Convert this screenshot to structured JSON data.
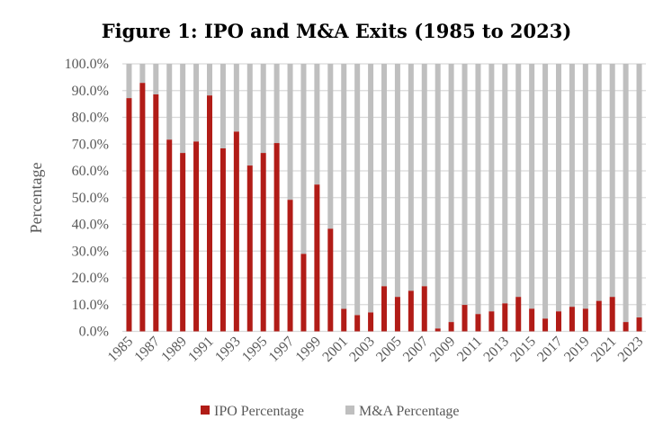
{
  "chart_data": {
    "type": "bar",
    "stacked": true,
    "title": "Figure 1: IPO and M&A Exits (1985 to 2023)",
    "xlabel": "",
    "ylabel": "Percentage",
    "ylim": [
      0,
      100
    ],
    "yticks": [
      "0.0%",
      "10.0%",
      "20.0%",
      "30.0%",
      "40.0%",
      "50.0%",
      "60.0%",
      "70.0%",
      "80.0%",
      "90.0%",
      "100.0%"
    ],
    "grid": true,
    "legend_position": "bottom",
    "categories": [
      "1985",
      "1986",
      "1987",
      "1988",
      "1989",
      "1990",
      "1991",
      "1992",
      "1993",
      "1994",
      "1995",
      "1996",
      "1997",
      "1998",
      "1999",
      "2000",
      "2001",
      "2002",
      "2003",
      "2004",
      "2005",
      "2006",
      "2007",
      "2008",
      "2009",
      "2010",
      "2011",
      "2012",
      "2013",
      "2014",
      "2015",
      "2016",
      "2017",
      "2018",
      "2019",
      "2020",
      "2021",
      "2022",
      "2023"
    ],
    "series": [
      {
        "name": "IPO Percentage",
        "color": "#b11c17",
        "values": [
          87.2,
          92.9,
          88.6,
          71.7,
          66.7,
          71.0,
          88.2,
          68.4,
          74.7,
          62.0,
          66.7,
          70.4,
          49.2,
          29.0,
          54.9,
          38.4,
          8.4,
          6.1,
          7.1,
          16.9,
          12.9,
          15.2,
          16.9,
          1.1,
          3.5,
          9.9,
          6.5,
          7.5,
          10.5,
          12.9,
          8.5,
          4.8,
          7.5,
          9.2,
          8.5,
          11.4,
          12.9,
          3.5,
          5.2
        ]
      },
      {
        "name": "M&A Percentage",
        "color": "#bfbfbf",
        "values": [
          12.8,
          7.1,
          11.4,
          28.3,
          33.3,
          29.0,
          11.8,
          31.6,
          25.3,
          38.0,
          33.3,
          29.6,
          50.8,
          71.0,
          45.1,
          61.6,
          91.6,
          93.9,
          92.9,
          83.1,
          87.1,
          84.8,
          83.1,
          98.9,
          96.5,
          90.1,
          93.5,
          92.5,
          89.5,
          87.1,
          91.5,
          95.2,
          92.5,
          90.8,
          91.5,
          88.6,
          87.1,
          96.5,
          94.8
        ]
      }
    ]
  }
}
